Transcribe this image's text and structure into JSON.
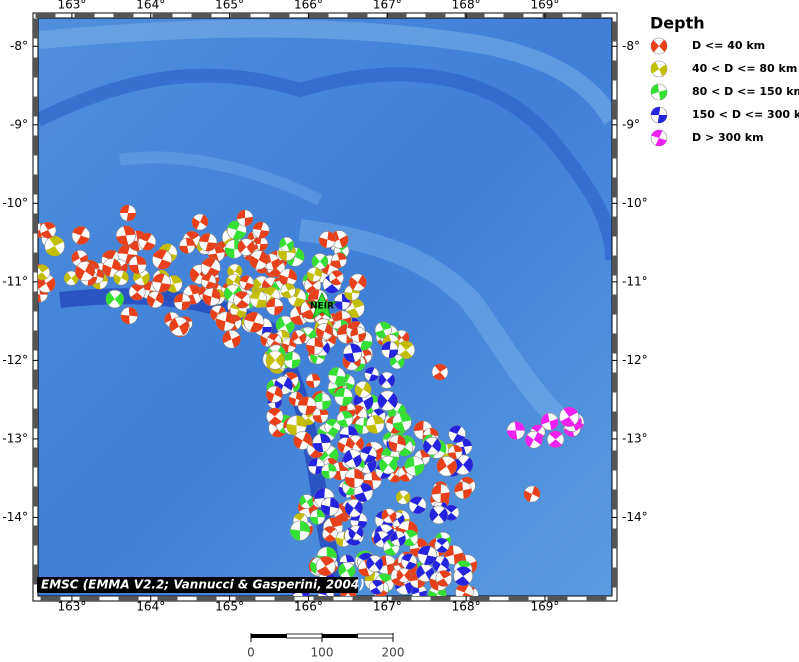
{
  "map": {
    "lon_range": [
      162.57,
      169.85
    ],
    "lat_range": [
      -7.64,
      -15.0
    ],
    "lon_ticks": [
      {
        "value": 163,
        "label": "163°"
      },
      {
        "value": 164,
        "label": "164°"
      },
      {
        "value": 165,
        "label": "165°"
      },
      {
        "value": 166,
        "label": "166°"
      },
      {
        "value": 167,
        "label": "167°"
      },
      {
        "value": 168,
        "label": "168°"
      },
      {
        "value": 169,
        "label": "169°"
      }
    ],
    "lat_ticks": [
      {
        "value": -8,
        "label": "-8°"
      },
      {
        "value": -9,
        "label": "-9°"
      },
      {
        "value": -10,
        "label": "-10°"
      },
      {
        "value": -11,
        "label": "-11°"
      },
      {
        "value": -12,
        "label": "-12°"
      },
      {
        "value": -13,
        "label": "-13°"
      },
      {
        "value": -14,
        "label": "-14°"
      }
    ],
    "station": "NEIR",
    "credit": "EMSC (EMMA V2.2; Vannucci & Gasperini, 2004)"
  },
  "legend": {
    "title": "Depth",
    "items": [
      {
        "name": "D <= 40 km",
        "color": "#e8401a"
      },
      {
        "name": "40 < D <= 80 km",
        "color": "#c4be00"
      },
      {
        "name": "80 < D <= 150 km",
        "color": "#33e033"
      },
      {
        "name": "150 < D <= 300 km",
        "color": "#2424e0"
      },
      {
        "name": "D > 300 km",
        "color": "#f020f0"
      }
    ]
  },
  "scale_bar": {
    "ticks": [
      0,
      100,
      200
    ]
  }
}
